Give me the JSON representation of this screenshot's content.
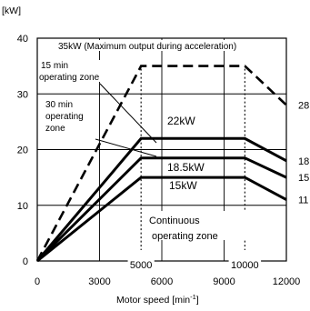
{
  "chart_data": {
    "type": "line",
    "ylabel": "[kW]",
    "xlabel": "Motor speed [min",
    "xlabel_sup": "-1",
    "xlabel_tail": "]",
    "xlim": [
      0,
      12000
    ],
    "ylim": [
      0,
      40
    ],
    "grid": true,
    "xticks": [
      {
        "v": 0,
        "label": "0"
      },
      {
        "v": 3000,
        "label": "3000"
      },
      {
        "v": 6000,
        "label": "6000"
      },
      {
        "v": 9000,
        "label": "9000"
      },
      {
        "v": 12000,
        "label": "12000"
      }
    ],
    "yticks": [
      {
        "v": 0,
        "label": "0"
      },
      {
        "v": 10,
        "label": "10"
      },
      {
        "v": 20,
        "label": "20"
      },
      {
        "v": 30,
        "label": "30"
      },
      {
        "v": 40,
        "label": "40"
      }
    ],
    "base_speed_labels": [
      {
        "v": 5000,
        "label": "5000"
      },
      {
        "v": 10000,
        "label": "10000"
      }
    ],
    "series": [
      {
        "name": "35kW",
        "style": "dashed",
        "x": [
          0,
          5000,
          10000,
          12000
        ],
        "y": [
          0,
          35,
          35,
          28
        ],
        "end_label": "28"
      },
      {
        "name": "22kW",
        "style": "solid",
        "x": [
          0,
          5000,
          10000,
          12000
        ],
        "y": [
          0,
          22,
          22,
          18
        ],
        "end_label": "18"
      },
      {
        "name": "18.5kW",
        "style": "solid",
        "x": [
          0,
          5000,
          10000,
          12000
        ],
        "y": [
          0,
          18.5,
          18.5,
          15
        ],
        "end_label": "15"
      },
      {
        "name": "15kW",
        "style": "solid",
        "x": [
          0,
          5000,
          10000,
          12000
        ],
        "y": [
          0,
          15,
          15,
          11
        ],
        "end_label": "11"
      }
    ],
    "annotations": {
      "max_output": "35kW (Maximum output during acceleration)",
      "zone_15min": [
        "15 min",
        "operating zone"
      ],
      "zone_30min": [
        "30 min",
        "operating",
        "zone"
      ],
      "label_22kw": "22kW",
      "label_185kw": "18.5kW",
      "label_15kw": "15kW",
      "continuous_zone": [
        "Continuous",
        "operating zone"
      ]
    }
  }
}
